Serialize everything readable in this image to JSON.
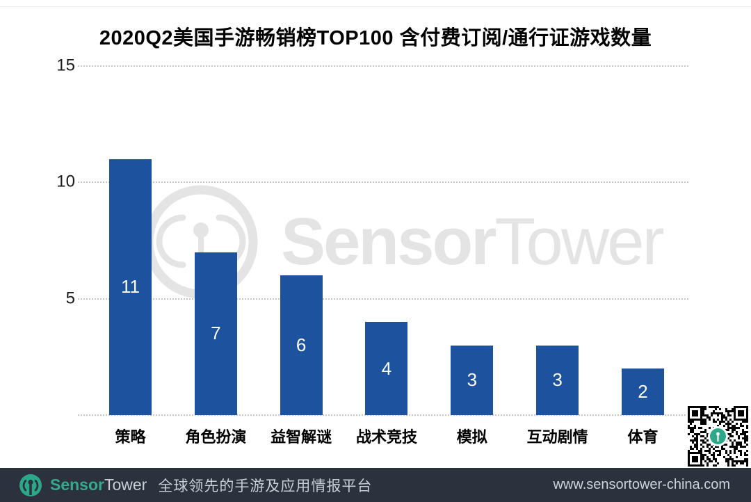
{
  "chart": {
    "title": "2020Q2美国手游畅销榜TOP100 含付费订阅/通行证游戏数量"
  },
  "chart_data": {
    "type": "bar",
    "title": "2020Q2美国手游畅销榜TOP100 含付费订阅/通行证游戏数量",
    "categories": [
      "策略",
      "角色扮演",
      "益智解谜",
      "战术竞技",
      "模拟",
      "互动剧情",
      "体育"
    ],
    "values": [
      11,
      7,
      6,
      4,
      3,
      3,
      2
    ],
    "xlabel": "",
    "ylabel": "",
    "ylim": [
      0,
      15
    ],
    "yticks": [
      15,
      10,
      5
    ],
    "grid": "horizontal-dotted",
    "legend": null,
    "bar_color": "#1d529e",
    "value_label_color": "#ffffff"
  },
  "watermark": {
    "brand_sensor": "Sensor",
    "brand_tower": "Tower",
    "color": "#e4e4e4"
  },
  "footer": {
    "brand_sensor": "Sensor",
    "brand_tower": "Tower",
    "tagline": "全球领先的手游及应用情报平台",
    "url": "www.sensortower-china.com",
    "background": "#2b323d",
    "brand_green": "#35aa8c"
  }
}
